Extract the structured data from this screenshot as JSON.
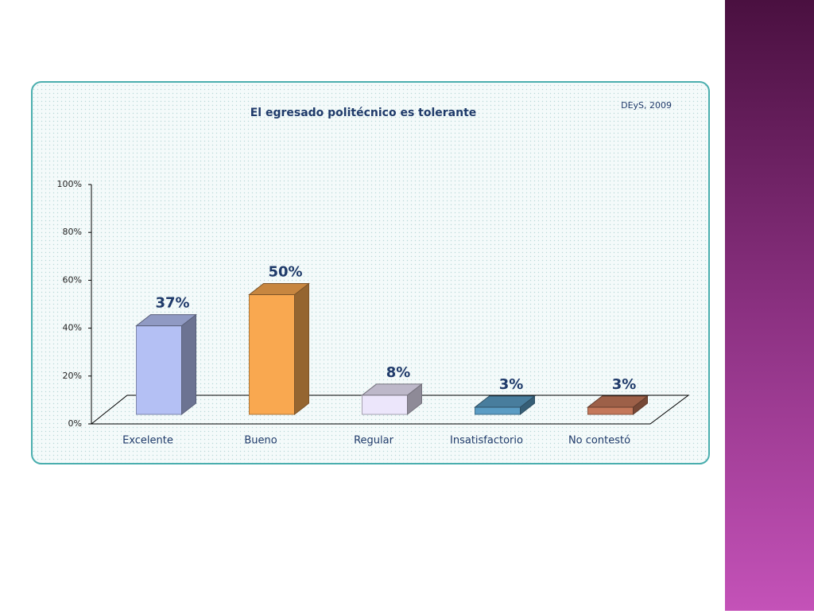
{
  "chart_data": {
    "type": "bar3d",
    "title": "El egresado politécnico es tolerante",
    "source": "DEyS, 2009",
    "categories": [
      "Excelente",
      "Bueno",
      "Regular",
      "Insatisfactorio",
      "No contestó"
    ],
    "values": [
      37,
      50,
      8,
      3,
      3
    ],
    "value_labels": [
      "37%",
      "50%",
      "8%",
      "3%",
      "3%"
    ],
    "colors": [
      "#b4c0f4",
      "#f9a850",
      "#ece6fb",
      "#5a9cc4",
      "#c4785a"
    ],
    "ylim": [
      0,
      100
    ],
    "yticks": [
      {
        "value": 0,
        "label": "0%"
      },
      {
        "value": 20,
        "label": "20%"
      },
      {
        "value": 40,
        "label": "40%"
      },
      {
        "value": 60,
        "label": "60%"
      },
      {
        "value": 80,
        "label": "80%"
      },
      {
        "value": 100,
        "label": "100%"
      }
    ]
  }
}
